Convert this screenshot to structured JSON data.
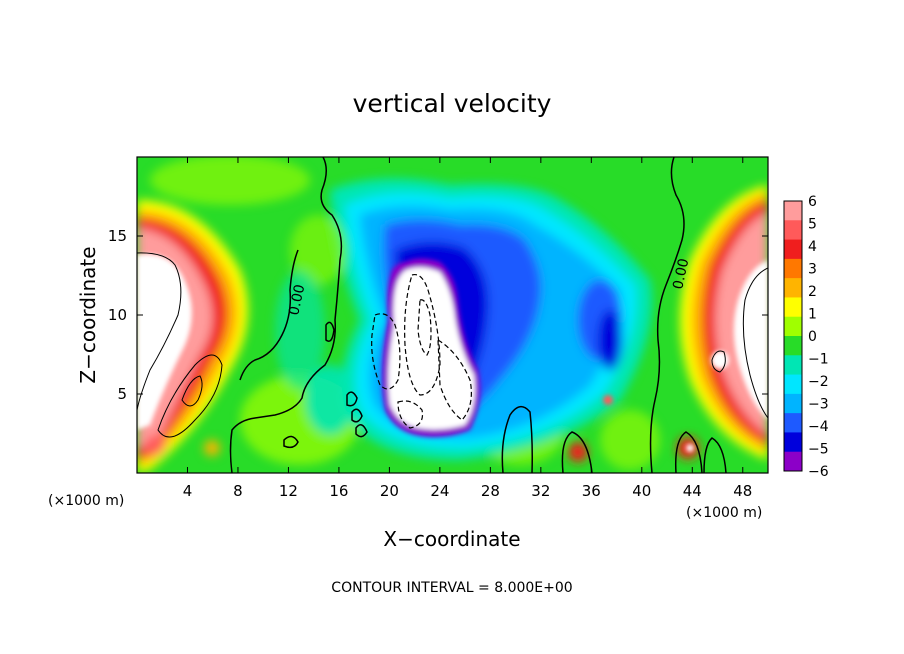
{
  "chart_data": {
    "type": "heatmap",
    "title": "vertical velocity",
    "xlabel": "X−coordinate",
    "ylabel": "Z−coordinate",
    "x_unit_left": "(×1000 m)",
    "x_unit_right": "(×1000 m)",
    "xlim": [
      0,
      50
    ],
    "ylim": [
      0,
      20
    ],
    "x_ticks": [
      {
        "value": 4,
        "label": "4"
      },
      {
        "value": 8,
        "label": "8"
      },
      {
        "value": 12,
        "label": "12"
      },
      {
        "value": 16,
        "label": "16"
      },
      {
        "value": 20,
        "label": "20"
      },
      {
        "value": 24,
        "label": "24"
      },
      {
        "value": 28,
        "label": "28"
      },
      {
        "value": 32,
        "label": "32"
      },
      {
        "value": 36,
        "label": "36"
      },
      {
        "value": 40,
        "label": "40"
      },
      {
        "value": 44,
        "label": "44"
      },
      {
        "value": 48,
        "label": "48"
      }
    ],
    "y_ticks": [
      {
        "value": 5,
        "label": "5"
      },
      {
        "value": 10,
        "label": "10"
      },
      {
        "value": 15,
        "label": "15"
      }
    ],
    "colorbar": {
      "min": -6,
      "max": 6,
      "labels": [
        "6",
        "5",
        "4",
        "3",
        "2",
        "1",
        "0",
        "−1",
        "−2",
        "−3",
        "−4",
        "−5",
        "−6"
      ],
      "colors": [
        "#ff9c9c",
        "#ff5a5a",
        "#f01e1e",
        "#ff7800",
        "#ffb400",
        "#ffff00",
        "#a0ff00",
        "#28dc28",
        "#00e6b4",
        "#00e6ff",
        "#00b4ff",
        "#1e5aff",
        "#0000dc",
        "#8c00c8"
      ]
    },
    "contour_labels": [
      "0.00",
      "0.00"
    ],
    "annotation": "CONTOUR INTERVAL = 8.000E+00"
  }
}
